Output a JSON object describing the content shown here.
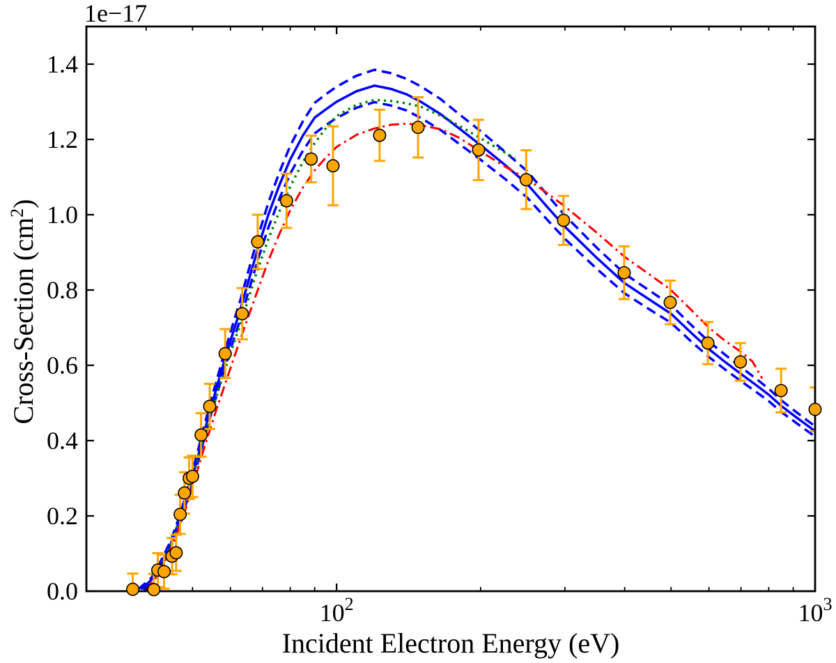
{
  "chart_data": {
    "type": "line",
    "title": "",
    "xlabel": "Incident Electron Energy (eV)",
    "ylabel_parts": {
      "pre": "Cross-Section (cm",
      "sup": "2",
      "post": ")"
    },
    "y_offset_label": "1e−17",
    "x_scale": "log",
    "y_scale": "linear",
    "xlim": [
      30,
      1000
    ],
    "ylim": [
      0,
      1.5
    ],
    "grid": false,
    "legend": null,
    "x_major_ticks": [
      {
        "value": 100,
        "base": "10",
        "exp": "2"
      },
      {
        "value": 1000,
        "base": "10",
        "exp": "3"
      }
    ],
    "x_minor_ticks": [
      40,
      50,
      60,
      70,
      80,
      90,
      200,
      300,
      400,
      500,
      600,
      700,
      800,
      900
    ],
    "y_major_ticks": [
      {
        "value": 0.0,
        "label": "0.0"
      },
      {
        "value": 0.2,
        "label": "0.2"
      },
      {
        "value": 0.4,
        "label": "0.4"
      },
      {
        "value": 0.6,
        "label": "0.6"
      },
      {
        "value": 0.8,
        "label": "0.8"
      },
      {
        "value": 1.0,
        "label": "1.0"
      },
      {
        "value": 1.2,
        "label": "1.2"
      },
      {
        "value": 1.4,
        "label": "1.4"
      }
    ],
    "colors": {
      "experiment": "#FFA500",
      "marker_edge": "#000000",
      "theory_blue": "#0000FF",
      "theory_green": "#008000",
      "theory_red": "#FF0000"
    },
    "series": [
      {
        "name": "upper-uncertainty-dashed",
        "color": "#0000FF",
        "width": 3.5,
        "dash": "14 8",
        "points": [
          [
            38.5,
            0.005
          ],
          [
            41,
            0.035
          ],
          [
            43,
            0.082
          ],
          [
            45,
            0.133
          ],
          [
            47,
            0.2
          ],
          [
            49,
            0.278
          ],
          [
            51,
            0.36
          ],
          [
            54,
            0.483
          ],
          [
            57,
            0.59
          ],
          [
            60,
            0.688
          ],
          [
            63,
            0.775
          ],
          [
            66,
            0.868
          ],
          [
            69,
            0.955
          ],
          [
            72,
            1.032
          ],
          [
            76,
            1.114
          ],
          [
            80,
            1.183
          ],
          [
            85,
            1.248
          ],
          [
            90,
            1.297
          ],
          [
            95,
            1.32
          ],
          [
            100,
            1.34
          ],
          [
            110,
            1.369
          ],
          [
            120,
            1.385
          ],
          [
            130,
            1.376
          ],
          [
            140,
            1.361
          ],
          [
            150,
            1.341
          ],
          [
            165,
            1.307
          ],
          [
            180,
            1.268
          ],
          [
            200,
            1.222
          ],
          [
            225,
            1.167
          ],
          [
            250,
            1.116
          ],
          [
            275,
            1.054
          ],
          [
            300,
            0.998
          ],
          [
            350,
            0.912
          ],
          [
            400,
            0.843
          ],
          [
            450,
            0.799
          ],
          [
            500,
            0.76
          ],
          [
            550,
            0.708
          ],
          [
            600,
            0.663
          ],
          [
            650,
            0.627
          ],
          [
            700,
            0.595
          ],
          [
            750,
            0.566
          ],
          [
            800,
            0.538
          ],
          [
            850,
            0.507
          ],
          [
            900,
            0.482
          ],
          [
            950,
            0.459
          ],
          [
            1000,
            0.438
          ]
        ]
      },
      {
        "name": "recommended-solid",
        "color": "#0000FF",
        "width": 3.5,
        "dash": "",
        "points": [
          [
            39,
            0.005
          ],
          [
            41,
            0.03
          ],
          [
            43,
            0.075
          ],
          [
            45,
            0.125
          ],
          [
            47,
            0.19
          ],
          [
            49,
            0.265
          ],
          [
            51,
            0.345
          ],
          [
            54,
            0.465
          ],
          [
            57,
            0.57
          ],
          [
            60,
            0.665
          ],
          [
            63,
            0.75
          ],
          [
            66,
            0.84
          ],
          [
            69,
            0.925
          ],
          [
            72,
            1.0
          ],
          [
            76,
            1.08
          ],
          [
            80,
            1.147
          ],
          [
            85,
            1.21
          ],
          [
            90,
            1.258
          ],
          [
            95,
            1.28
          ],
          [
            100,
            1.3
          ],
          [
            110,
            1.328
          ],
          [
            120,
            1.343
          ],
          [
            130,
            1.334
          ],
          [
            140,
            1.32
          ],
          [
            150,
            1.3
          ],
          [
            165,
            1.267
          ],
          [
            180,
            1.23
          ],
          [
            200,
            1.185
          ],
          [
            225,
            1.132
          ],
          [
            250,
            1.082
          ],
          [
            275,
            1.022
          ],
          [
            300,
            0.968
          ],
          [
            350,
            0.885
          ],
          [
            400,
            0.818
          ],
          [
            450,
            0.775
          ],
          [
            500,
            0.737
          ],
          [
            550,
            0.687
          ],
          [
            600,
            0.643
          ],
          [
            650,
            0.608
          ],
          [
            700,
            0.577
          ],
          [
            750,
            0.549
          ],
          [
            800,
            0.522
          ],
          [
            850,
            0.492
          ],
          [
            900,
            0.468
          ],
          [
            950,
            0.446
          ],
          [
            1000,
            0.425
          ]
        ]
      },
      {
        "name": "lower-uncertainty-dashed",
        "color": "#0000FF",
        "width": 3.5,
        "dash": "14 8",
        "points": [
          [
            39.5,
            0.003
          ],
          [
            41,
            0.022
          ],
          [
            43,
            0.066
          ],
          [
            45,
            0.115
          ],
          [
            47,
            0.178
          ],
          [
            49,
            0.252
          ],
          [
            51,
            0.33
          ],
          [
            54,
            0.447
          ],
          [
            57,
            0.55
          ],
          [
            60,
            0.642
          ],
          [
            63,
            0.724
          ],
          [
            66,
            0.812
          ],
          [
            69,
            0.894
          ],
          [
            72,
            0.966
          ],
          [
            76,
            1.044
          ],
          [
            80,
            1.109
          ],
          [
            85,
            1.17
          ],
          [
            90,
            1.216
          ],
          [
            95,
            1.238
          ],
          [
            100,
            1.257
          ],
          [
            110,
            1.284
          ],
          [
            120,
            1.299
          ],
          [
            130,
            1.29
          ],
          [
            140,
            1.277
          ],
          [
            150,
            1.257
          ],
          [
            165,
            1.225
          ],
          [
            180,
            1.189
          ],
          [
            200,
            1.146
          ],
          [
            225,
            1.095
          ],
          [
            250,
            1.046
          ],
          [
            275,
            0.988
          ],
          [
            300,
            0.936
          ],
          [
            350,
            0.856
          ],
          [
            400,
            0.791
          ],
          [
            450,
            0.749
          ],
          [
            500,
            0.713
          ],
          [
            550,
            0.664
          ],
          [
            600,
            0.622
          ],
          [
            650,
            0.588
          ],
          [
            700,
            0.558
          ],
          [
            750,
            0.531
          ],
          [
            800,
            0.505
          ],
          [
            850,
            0.476
          ],
          [
            900,
            0.453
          ],
          [
            950,
            0.431
          ],
          [
            1000,
            0.411
          ]
        ]
      },
      {
        "name": "green-dotted-theory",
        "color": "#008000",
        "width": 3.5,
        "dash": "3 6",
        "points": [
          [
            40,
            0.005
          ],
          [
            42,
            0.045
          ],
          [
            44,
            0.095
          ],
          [
            46,
            0.155
          ],
          [
            48,
            0.225
          ],
          [
            50,
            0.3
          ],
          [
            53,
            0.415
          ],
          [
            56,
            0.515
          ],
          [
            59,
            0.605
          ],
          [
            62,
            0.685
          ],
          [
            65,
            0.765
          ],
          [
            68,
            0.845
          ],
          [
            72,
            0.935
          ],
          [
            76,
            1.01
          ],
          [
            80,
            1.075
          ],
          [
            85,
            1.14
          ],
          [
            90,
            1.19
          ],
          [
            95,
            1.23
          ],
          [
            100,
            1.262
          ],
          [
            110,
            1.292
          ],
          [
            120,
            1.305
          ],
          [
            130,
            1.302
          ],
          [
            140,
            1.296
          ],
          [
            150,
            1.287
          ],
          [
            165,
            1.263
          ],
          [
            180,
            1.237
          ],
          [
            200,
            1.203
          ],
          [
            220,
            1.172
          ],
          [
            236,
            1.15
          ]
        ]
      },
      {
        "name": "red-dashdot-theory",
        "color": "#FF0000",
        "width": 3,
        "dash": "15 6 3 6",
        "points": [
          [
            40,
            0.002
          ],
          [
            42,
            0.038
          ],
          [
            44,
            0.085
          ],
          [
            46,
            0.14
          ],
          [
            48,
            0.205
          ],
          [
            50,
            0.278
          ],
          [
            53,
            0.385
          ],
          [
            56,
            0.48
          ],
          [
            59,
            0.565
          ],
          [
            62,
            0.645
          ],
          [
            65,
            0.72
          ],
          [
            68,
            0.79
          ],
          [
            72,
            0.878
          ],
          [
            76,
            0.95
          ],
          [
            80,
            1.012
          ],
          [
            85,
            1.072
          ],
          [
            90,
            1.118
          ],
          [
            95,
            1.152
          ],
          [
            100,
            1.18
          ],
          [
            110,
            1.212
          ],
          [
            120,
            1.229
          ],
          [
            130,
            1.239
          ],
          [
            140,
            1.242
          ],
          [
            150,
            1.238
          ],
          [
            165,
            1.227
          ],
          [
            180,
            1.205
          ],
          [
            200,
            1.168
          ],
          [
            225,
            1.128
          ],
          [
            250,
            1.095
          ],
          [
            275,
            1.058
          ],
          [
            300,
            1.022
          ],
          [
            350,
            0.952
          ],
          [
            400,
            0.888
          ],
          [
            450,
            0.842
          ],
          [
            500,
            0.8
          ],
          [
            550,
            0.748
          ],
          [
            600,
            0.7
          ],
          [
            650,
            0.664
          ],
          [
            700,
            0.636
          ],
          [
            740,
            0.61
          ],
          [
            775,
            0.565
          ]
        ]
      }
    ],
    "scatter": {
      "name": "experiment-points",
      "color": "#FFA500",
      "edge": "#000000",
      "radius": 8.7,
      "points_format": [
        "energy_eV",
        "value_1e-17_cm2",
        "error_half_length"
      ],
      "points": [
        [
          37.5,
          0.005,
          0.042
        ],
        [
          41.5,
          0.004,
          0.042
        ],
        [
          42.3,
          0.056,
          0.045
        ],
        [
          43.6,
          0.052,
          0.045
        ],
        [
          45.3,
          0.093,
          0.048
        ],
        [
          46.2,
          0.102,
          0.048
        ],
        [
          47.1,
          0.204,
          0.052
        ],
        [
          48.1,
          0.261,
          0.055
        ],
        [
          49.2,
          0.3,
          0.055
        ],
        [
          50.0,
          0.305,
          0.055
        ],
        [
          52.1,
          0.415,
          0.058
        ],
        [
          54.3,
          0.491,
          0.06
        ],
        [
          58.5,
          0.631,
          0.065
        ],
        [
          63.5,
          0.737,
          0.068
        ],
        [
          68.4,
          0.928,
          0.072
        ],
        [
          78.6,
          1.037,
          0.072
        ],
        [
          88.5,
          1.148,
          0.062
        ],
        [
          98.3,
          1.13,
          0.105
        ],
        [
          123,
          1.211,
          0.068
        ],
        [
          148,
          1.232,
          0.08
        ],
        [
          198,
          1.172,
          0.08
        ],
        [
          249,
          1.093,
          0.078
        ],
        [
          298,
          0.985,
          0.065
        ],
        [
          399,
          0.846,
          0.07
        ],
        [
          498,
          0.767,
          0.058
        ],
        [
          597,
          0.659,
          0.056
        ],
        [
          698,
          0.609,
          0.05
        ],
        [
          849,
          0.533,
          0.058
        ],
        [
          1000,
          0.483,
          0.058
        ]
      ]
    }
  }
}
